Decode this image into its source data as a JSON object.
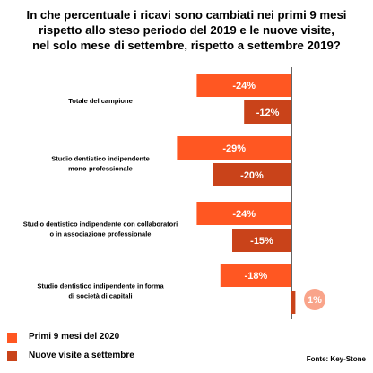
{
  "title": [
    "In che percentuale i ricavi sono cambiati nei primi 9 mesi",
    "rispetto allo steso periodo del 2019 e le nuove visite,",
    "nel solo mese di settembre, rispetto a settembre 2019?"
  ],
  "source": "Fonte: Key-Stone",
  "colors": {
    "series1": "#FF5722",
    "series2": "#C9431A",
    "axis": "#111111"
  },
  "chart_data": {
    "type": "bar",
    "orientation": "horizontal",
    "categories": [
      [
        "Totale del campione"
      ],
      [
        "Studio dentistico indipendente",
        "mono-professionale"
      ],
      [
        "Studio dentistico indipendente con collaboratori",
        "o in associazione professionale"
      ],
      [
        "Studio dentistico indipendente in forma",
        "di società di capitali"
      ]
    ],
    "series": [
      {
        "name": "Primi 9 mesi del 2020",
        "values": [
          -24,
          -29,
          -24,
          -18
        ],
        "labels": [
          "-24%",
          "-29%",
          "-24%",
          "-18%"
        ]
      },
      {
        "name": "Nuove visite a settembre",
        "values": [
          -12,
          -20,
          -15,
          1
        ],
        "labels": [
          "-12%",
          "-20%",
          "-15%",
          "1%"
        ]
      }
    ],
    "unit": "%",
    "grid": false,
    "legend": "bottom-left"
  }
}
